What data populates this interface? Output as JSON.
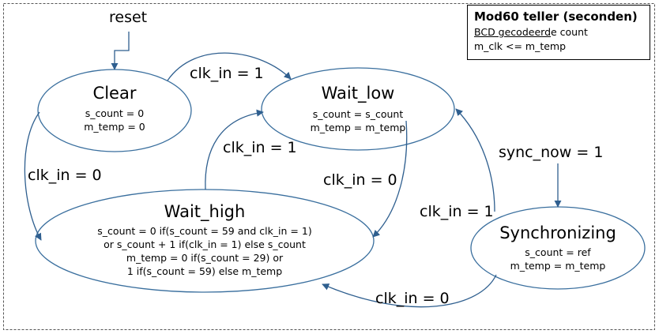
{
  "colors": {
    "ellipse_stroke": "#3a6f9e",
    "arrow": "#2f5f8f",
    "frame": "#555555",
    "text": "#000000"
  },
  "legend": {
    "title": "Mod60 teller (seconden)",
    "line1_underlined": "BCD gecodeerd",
    "line1_rest": "e count",
    "line2": "m_clk <= m_temp"
  },
  "inputs": {
    "reset": "reset",
    "sync_now": "sync_now = 1"
  },
  "states": {
    "clear": {
      "name": "Clear",
      "lines": [
        "s_count = 0",
        "m_temp  = 0"
      ]
    },
    "wait_low": {
      "name": "Wait_low",
      "lines": [
        "s_count = s_count",
        "m_temp  = m_temp"
      ]
    },
    "wait_high": {
      "name": "Wait_high",
      "lines": [
        "s_count = 0 if(s_count = 59 and clk_in = 1)",
        "or s_count + 1 if(clk_in = 1) else s_count",
        "m_temp  = 0 if(s_count = 29) or",
        "1 if(s_count = 59) else m_temp"
      ]
    },
    "synchronizing": {
      "name": "Synchronizing",
      "lines": [
        "s_count = ref",
        "m_temp  = m_temp"
      ]
    }
  },
  "transitions": {
    "clear_to_wait_low": "clk_in = 1",
    "clear_to_wait_high": "clk_in = 0",
    "wait_high_to_wait_low": "clk_in = 1",
    "wait_low_to_wait_high": "clk_in = 0",
    "sync_to_wait_low": "clk_in = 1",
    "sync_to_wait_high": "clk_in = 0"
  }
}
